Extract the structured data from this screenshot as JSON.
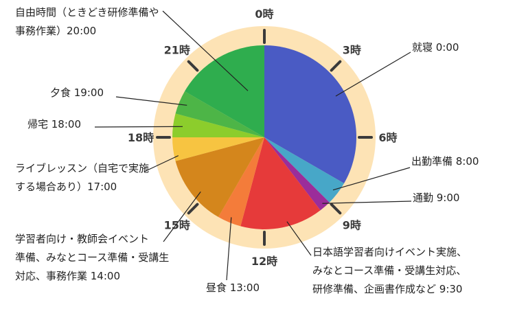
{
  "chart_data": {
    "type": "pie",
    "title": "",
    "unit": "時",
    "slices": [
      {
        "label": "就寝 0:00",
        "lines": [
          "就寝 0:00"
        ],
        "start": 0,
        "end": 8,
        "color": "#4a5bc4"
      },
      {
        "label": "出勤準備 8:00",
        "lines": [
          "出勤準備 8:00"
        ],
        "start": 8,
        "end": 9,
        "color": "#47a7c8"
      },
      {
        "label": "通勤 9:00",
        "lines": [
          "通勤 9:00"
        ],
        "start": 9,
        "end": 9.5,
        "color": "#9b2d9a"
      },
      {
        "label": "日本語学習者向けイベント実施、みなとコース準備・受講生対応、研修準備、企画書作成など 9:30",
        "lines": [
          "日本語学習者向けイベント実施、",
          "みなとコース準備・受講生対応、",
          "研修準備、企画書作成など 9:30"
        ],
        "start": 9.5,
        "end": 13,
        "color": "#e63a3a"
      },
      {
        "label": "昼食 13:00",
        "lines": [
          "昼食 13:00"
        ],
        "start": 13,
        "end": 14,
        "color": "#f47c3a"
      },
      {
        "label": "学習者向け・教師会イベント準備、みなとコース準備・受講生対応、事務作業 14:00",
        "lines": [
          "学習者向け・教師会イベント",
          "準備、みなとコース準備・受講生",
          "対応、事務作業 14:00"
        ],
        "start": 14,
        "end": 17,
        "color": "#d4861c"
      },
      {
        "label": "ライブレッスン（自宅で実施する場合あり）17:00",
        "lines": [
          "ライブレッスン（自宅で実施",
          "する場合あり）17:00"
        ],
        "start": 17,
        "end": 18,
        "color": "#f7c441"
      },
      {
        "label": "帰宅 18:00",
        "lines": [
          "帰宅 18:00"
        ],
        "start": 18,
        "end": 19,
        "color": "#8ccd2c"
      },
      {
        "label": "夕食 19:00",
        "lines": [
          "夕食 19:00"
        ],
        "start": 19,
        "end": 20,
        "color": "#4db547"
      },
      {
        "label": "自由時間（ときどき研修準備や事務作業）20:00",
        "lines": [
          "自由時間（ときどき研修準備や",
          "事務作業）20:00"
        ],
        "start": 20,
        "end": 24,
        "color": "#2fad4e"
      }
    ],
    "hour_ticks": [
      {
        "hour": 0,
        "label": "0時"
      },
      {
        "hour": 3,
        "label": "3時"
      },
      {
        "hour": 6,
        "label": "6時"
      },
      {
        "hour": 9,
        "label": "9時"
      },
      {
        "hour": 12,
        "label": "12時"
      },
      {
        "hour": 15,
        "label": "15時"
      },
      {
        "hour": 18,
        "label": "18時"
      },
      {
        "hour": 21,
        "label": "21時"
      }
    ]
  },
  "colors": {
    "clock_ring": "#fde3b5",
    "tick_mark": "#3a3a3a",
    "leader_line": "#222222"
  }
}
